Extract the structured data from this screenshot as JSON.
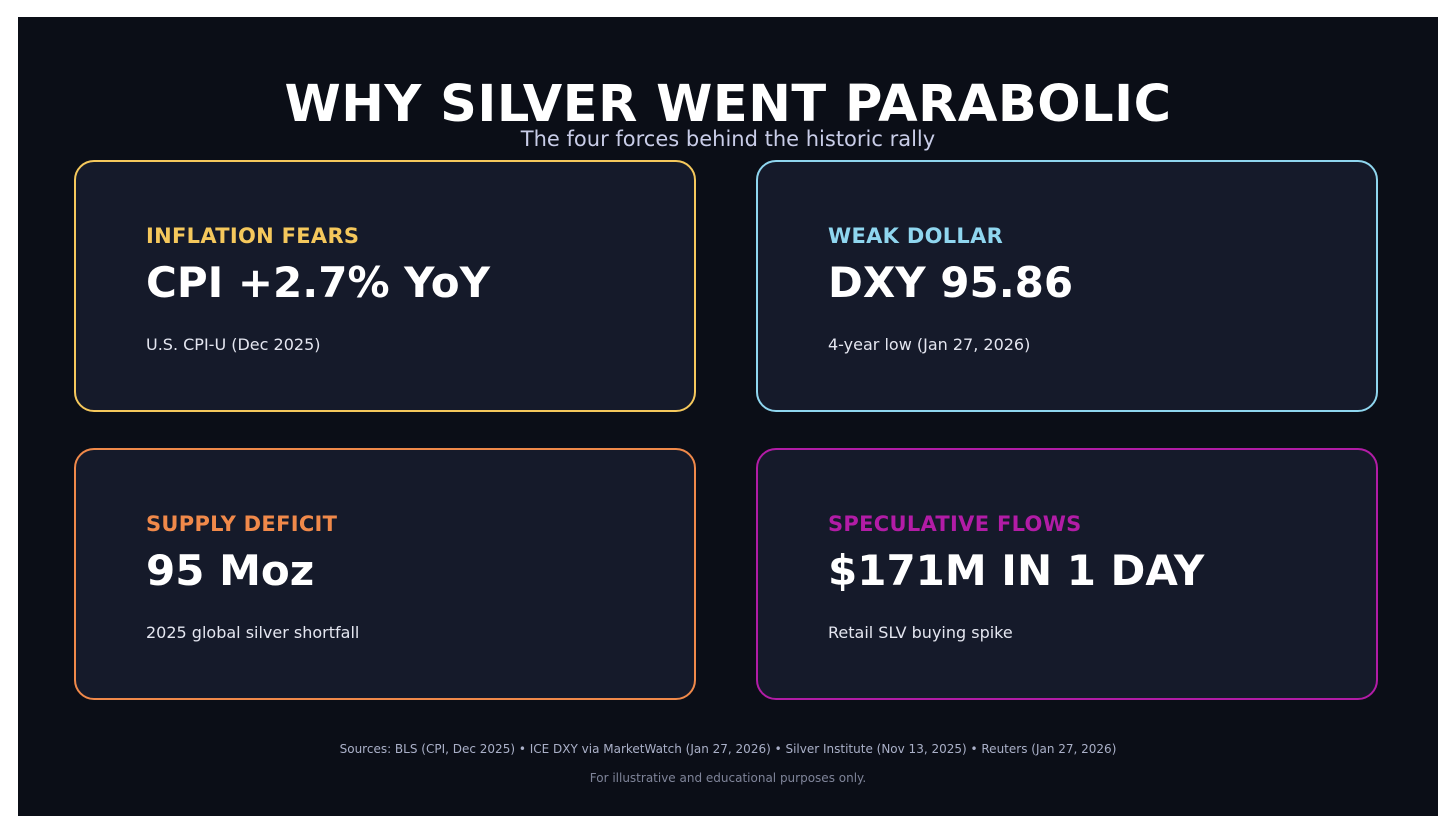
{
  "header": {
    "title": "WHY SILVER WENT PARABOLIC",
    "subtitle": "The four forces behind the historic rally"
  },
  "cards": [
    {
      "label": "INFLATION FEARS",
      "value": "CPI +2.7% YoY",
      "note": "U.S. CPI-U (Dec 2025)",
      "accent": "#f5c85c"
    },
    {
      "label": "WEAK DOLLAR",
      "value": "DXY 95.86",
      "note": "4-year low (Jan 27, 2026)",
      "accent": "#8fd6ef"
    },
    {
      "label": "SUPPLY DEFICIT",
      "value": "95 Moz",
      "note": "2025 global silver shortfall",
      "accent": "#f0894a"
    },
    {
      "label": "SPECULATIVE FLOWS",
      "value": "$171M IN 1 DAY",
      "note": "Retail SLV buying spike",
      "accent": "#b21ca6"
    }
  ],
  "footer": {
    "sources": "Sources: BLS (CPI, Dec 2025) • ICE DXY via MarketWatch (Jan 27, 2026) • Silver Institute (Nov 13, 2025) • Reuters (Jan 27, 2026)",
    "disclaimer": "For illustrative and educational purposes only."
  },
  "colors": {
    "background": "#0b0e17",
    "card_background": "#151a2a"
  }
}
